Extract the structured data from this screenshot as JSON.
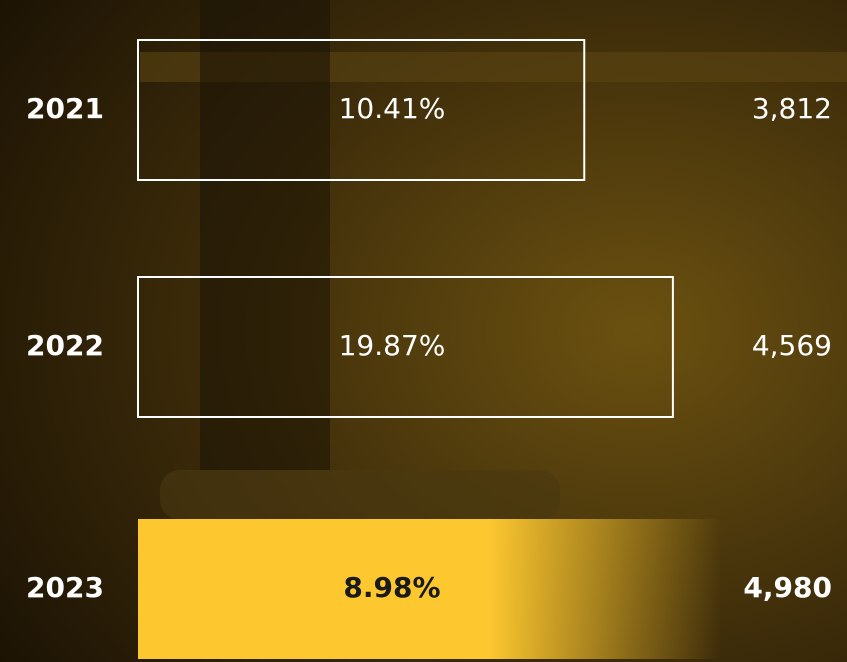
{
  "chart_data": {
    "type": "bar",
    "orientation": "horizontal",
    "categories": [
      "2021",
      "2022",
      "2023"
    ],
    "values": [
      3812,
      4569,
      4980
    ],
    "value_labels": [
      "3,812",
      "4,569",
      "4,980"
    ],
    "change_labels": [
      "10.41%",
      "19.87%",
      "8.98%"
    ],
    "color": "#ffffff",
    "highlight_color": "#fdc82f"
  }
}
